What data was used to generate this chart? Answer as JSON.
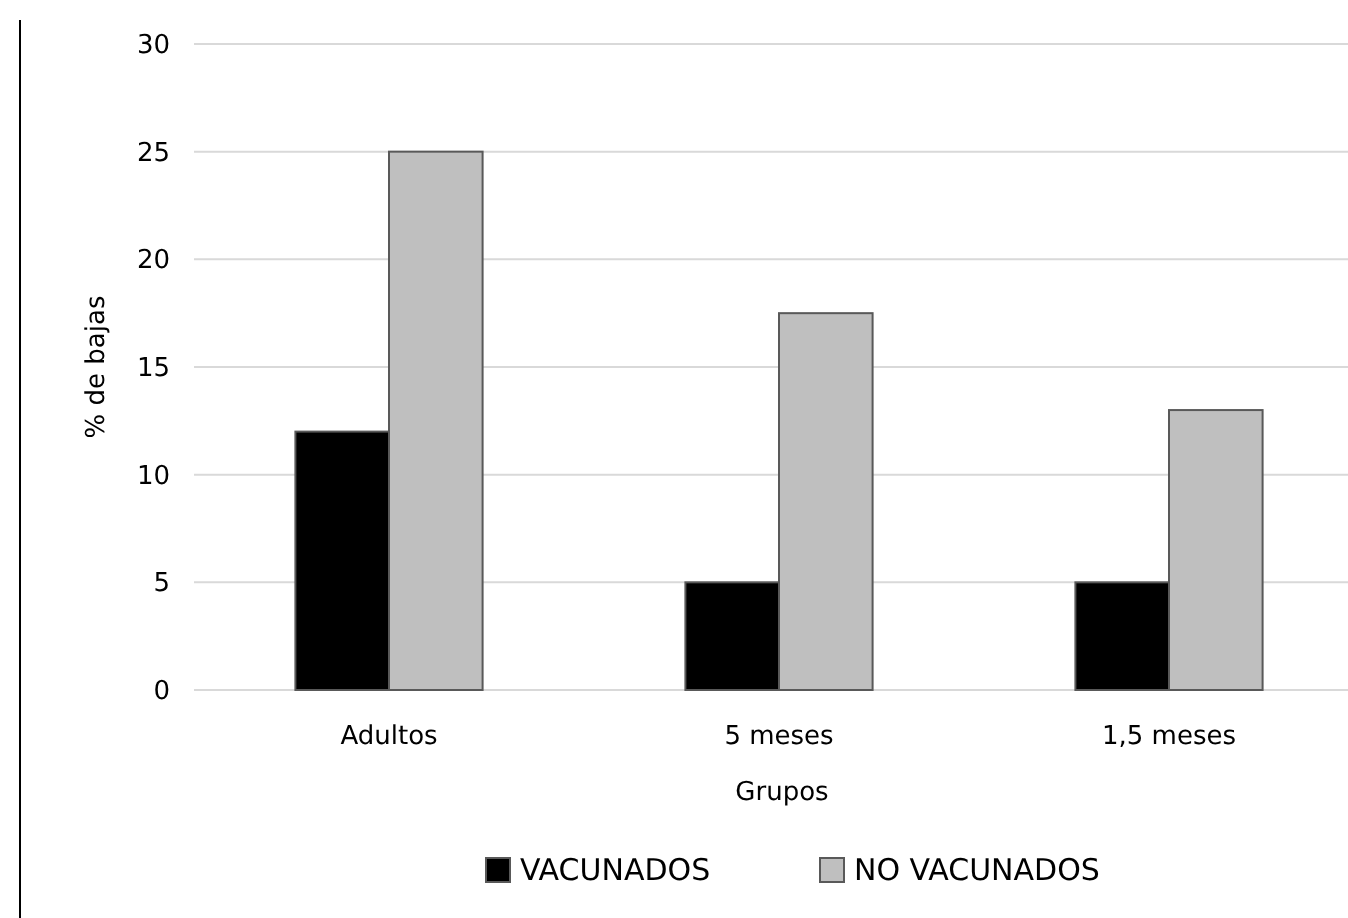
{
  "chart_data": {
    "type": "bar",
    "xlabel": "Grupos",
    "ylabel": "% de bajas",
    "categories": [
      "Adultos",
      "5 meses",
      "1,5 meses"
    ],
    "series": [
      {
        "name": "VACUNADOS",
        "color": "#000000",
        "values": [
          12,
          5,
          5
        ]
      },
      {
        "name": "NO VACUNADOS",
        "color": "#bfbfbf",
        "values": [
          25,
          17.5,
          13
        ]
      }
    ],
    "ylim": [
      0,
      30
    ],
    "yticks": [
      0,
      5,
      10,
      15,
      20,
      25,
      30
    ],
    "grid": "y",
    "legend": "bottom"
  }
}
